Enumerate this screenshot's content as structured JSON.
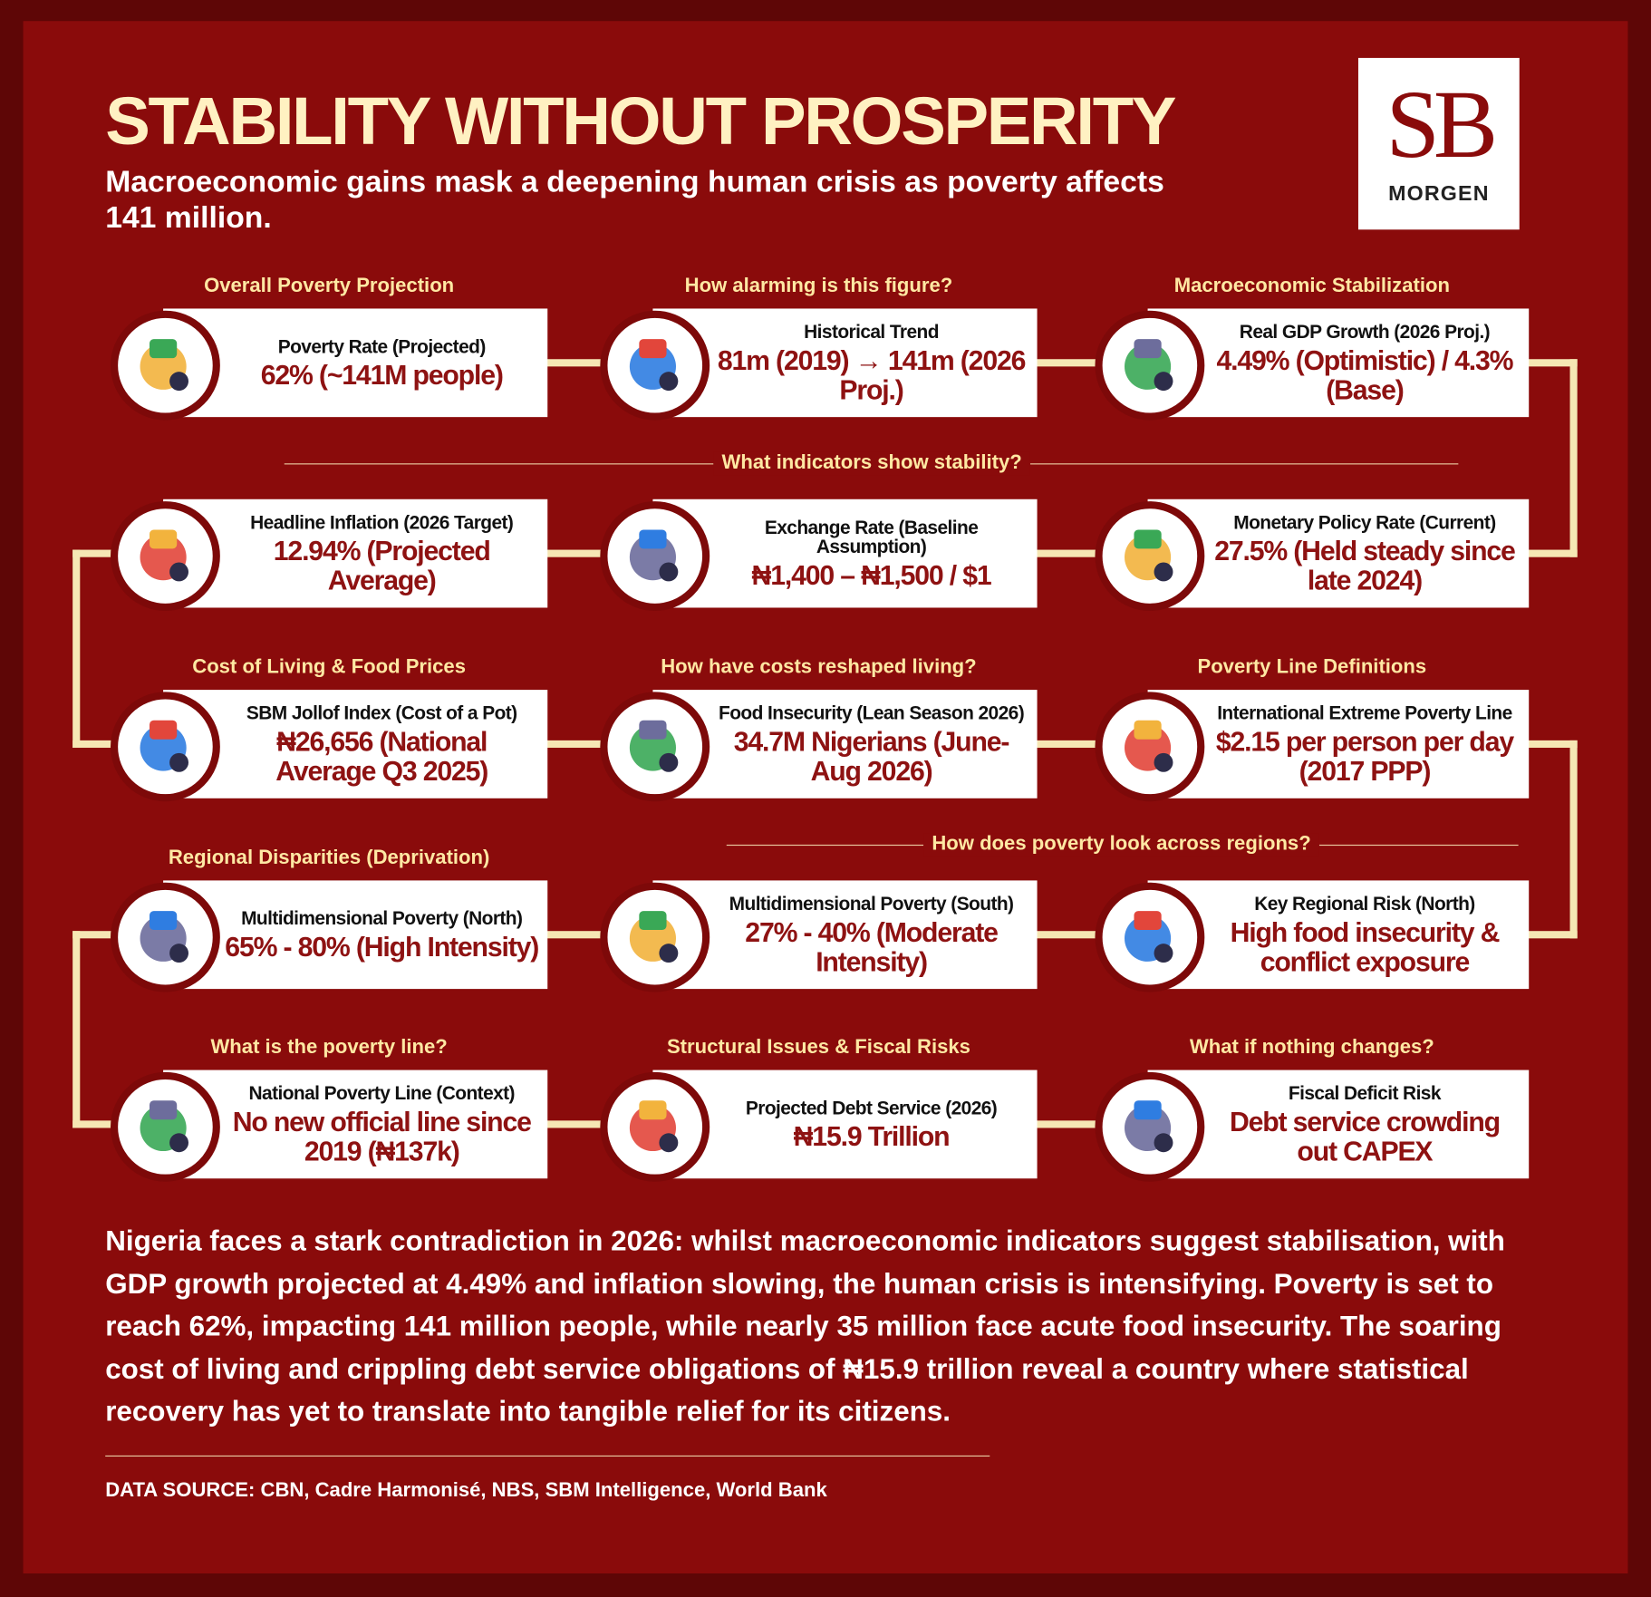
{
  "header": {
    "title": "STABILITY WITHOUT PROSPERITY",
    "subtitle": "Macroeconomic gains mask a deepening human crisis as poverty affects 141 million.",
    "logo": {
      "initials": "SB",
      "name": "MORGEN"
    }
  },
  "cards": [
    {
      "heading": "Overall Poverty Projection",
      "label": "Poverty Rate (Projected)",
      "value": "62% (~141M  people)"
    },
    {
      "heading": "How alarming is this figure?",
      "label": "Historical Trend",
      "value": "81m (2019) → 141m (2026 Proj.)"
    },
    {
      "heading": "Macroeconomic Stabilization",
      "label": "Real GDP Growth (2026 Proj.)",
      "value": "4.49% (Optimistic) / 4.3% (Base)"
    },
    {
      "label": "Headline Inflation (2026 Target)",
      "value": "12.94% (Projected Average)"
    },
    {
      "label": "Exchange Rate (Baseline Assumption)",
      "value": "₦1,400 – ₦1,500 / $1"
    },
    {
      "label": "Monetary Policy Rate (Current)",
      "value": "27.5% (Held steady since late 2024)"
    },
    {
      "heading": "Cost of Living & Food Prices",
      "label": "SBM Jollof Index (Cost of a Pot)",
      "value": "₦26,656 (National Average Q3 2025)"
    },
    {
      "heading": "How have costs reshaped living?",
      "label": "Food Insecurity (Lean Season 2026)",
      "value": "34.7M Nigerians (June-Aug 2026)"
    },
    {
      "heading": "Poverty Line Definitions",
      "label": "International Extreme Poverty Line",
      "value": "$2.15 per person per day (2017 PPP)"
    },
    {
      "heading": "Regional Disparities (Deprivation)",
      "label": "Multidimensional Poverty (North)",
      "value": "65% - 80% (High Intensity)"
    },
    {
      "label": "Multidimensional Poverty (South)",
      "value": "27% - 40% (Moderate Intensity)"
    },
    {
      "label": "Key Regional Risk (North)",
      "value": "High food insecurity & conflict exposure"
    },
    {
      "heading": "What is the poverty line?",
      "label": "National Poverty Line (Context)",
      "value": "No new official line since 2019 (₦137k)"
    },
    {
      "heading": "Structural Issues & Fiscal Risks",
      "label": "Projected Debt Service (2026)",
      "value": "₦15.9 Trillion"
    },
    {
      "heading": "What if nothing changes?",
      "label": "Fiscal Deficit Risk",
      "value": "Debt service crowding out CAPEX"
    }
  ],
  "dividers": [
    "What indicators show stability?",
    "How does poverty look across regions?"
  ],
  "summary": "Nigeria faces a stark contradiction in 2026: whilst macroeconomic indicators suggest stabilisation, with GDP growth projected at 4.49% and inflation slowing, the human crisis is intensifying. Poverty is set to reach 62%, impacting 141 million people, while nearly 35 million face acute food insecurity. The soaring cost of living and crippling debt service obligations of ₦15.9 trillion reveal a country where statistical recovery has yet to translate into tangible relief for its citizens.",
  "source": "DATA SOURCE:  CBN, Cadre Harmonisé, NBS, SBM Intelligence, World Bank"
}
